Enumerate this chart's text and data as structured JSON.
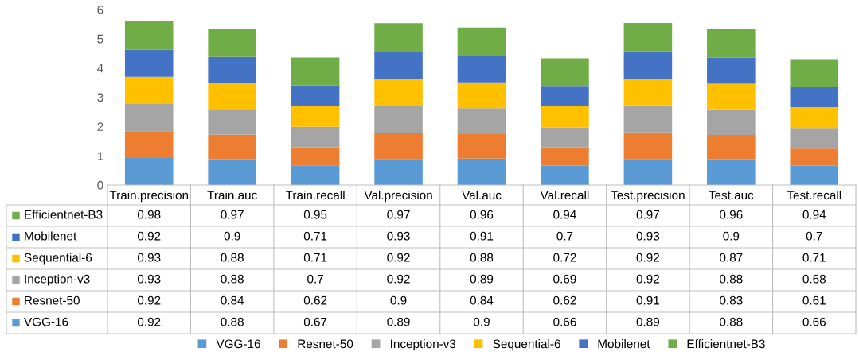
{
  "chart_data": {
    "type": "bar",
    "stacked": true,
    "categories": [
      "Train.precision",
      "Train.auc",
      "Train.recall",
      "Val.precision",
      "Val.auc",
      "Val.recall",
      "Test.precision",
      "Test.auc",
      "Test.recall"
    ],
    "series": [
      {
        "name": "VGG-16",
        "color": "#5b9bd5",
        "values": [
          0.92,
          0.88,
          0.67,
          0.89,
          0.9,
          0.66,
          0.89,
          0.88,
          0.66
        ]
      },
      {
        "name": "Resnet-50",
        "color": "#ed7d31",
        "values": [
          0.92,
          0.84,
          0.62,
          0.9,
          0.84,
          0.62,
          0.91,
          0.83,
          0.61
        ]
      },
      {
        "name": "Inception-v3",
        "color": "#a5a5a5",
        "values": [
          0.93,
          0.88,
          0.7,
          0.92,
          0.89,
          0.69,
          0.92,
          0.88,
          0.68
        ]
      },
      {
        "name": "Sequential-6",
        "color": "#ffc000",
        "values": [
          0.93,
          0.88,
          0.71,
          0.92,
          0.88,
          0.72,
          0.92,
          0.87,
          0.71
        ]
      },
      {
        "name": "Mobilenet",
        "color": "#4472c4",
        "values": [
          0.92,
          0.9,
          0.71,
          0.93,
          0.91,
          0.7,
          0.93,
          0.9,
          0.7
        ]
      },
      {
        "name": "Efficientnet-B3",
        "color": "#70ad47",
        "values": [
          0.98,
          0.97,
          0.95,
          0.97,
          0.96,
          0.94,
          0.97,
          0.96,
          0.94
        ]
      }
    ],
    "ylim": [
      0,
      6
    ],
    "yticks": [
      0,
      1,
      2,
      3,
      4,
      5,
      6
    ],
    "grid": false,
    "legend": "bottom",
    "data_labels": true
  }
}
